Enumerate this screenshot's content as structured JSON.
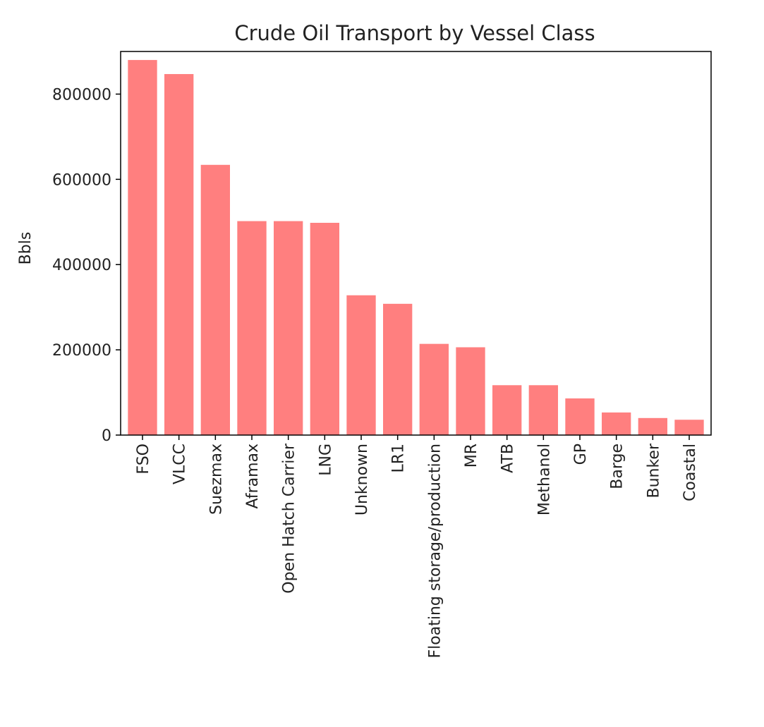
{
  "chart_data": {
    "type": "bar",
    "title": "Crude Oil Transport by Vessel Class",
    "xlabel": "",
    "ylabel": "Bbls",
    "categories": [
      "FSO",
      "VLCC",
      "Suezmax",
      "Aframax",
      "Open Hatch Carrier",
      "LNG",
      "Unknown",
      "LR1",
      "Floating storage/production",
      "MR",
      "ATB",
      "Methanol",
      "GP",
      "Barge",
      "Bunker",
      "Coastal"
    ],
    "values": [
      880000,
      847000,
      634000,
      502000,
      502000,
      498000,
      328000,
      308000,
      214000,
      206000,
      117000,
      117000,
      86000,
      53000,
      40000,
      36000
    ],
    "ylim": [
      0,
      900000
    ],
    "yticks": [
      0,
      200000,
      400000,
      600000,
      800000
    ],
    "ytick_labels": [
      "0",
      "200000",
      "400000",
      "600000",
      "800000"
    ],
    "bar_color": "#ff7f7f",
    "grid": false,
    "legend": "none"
  }
}
